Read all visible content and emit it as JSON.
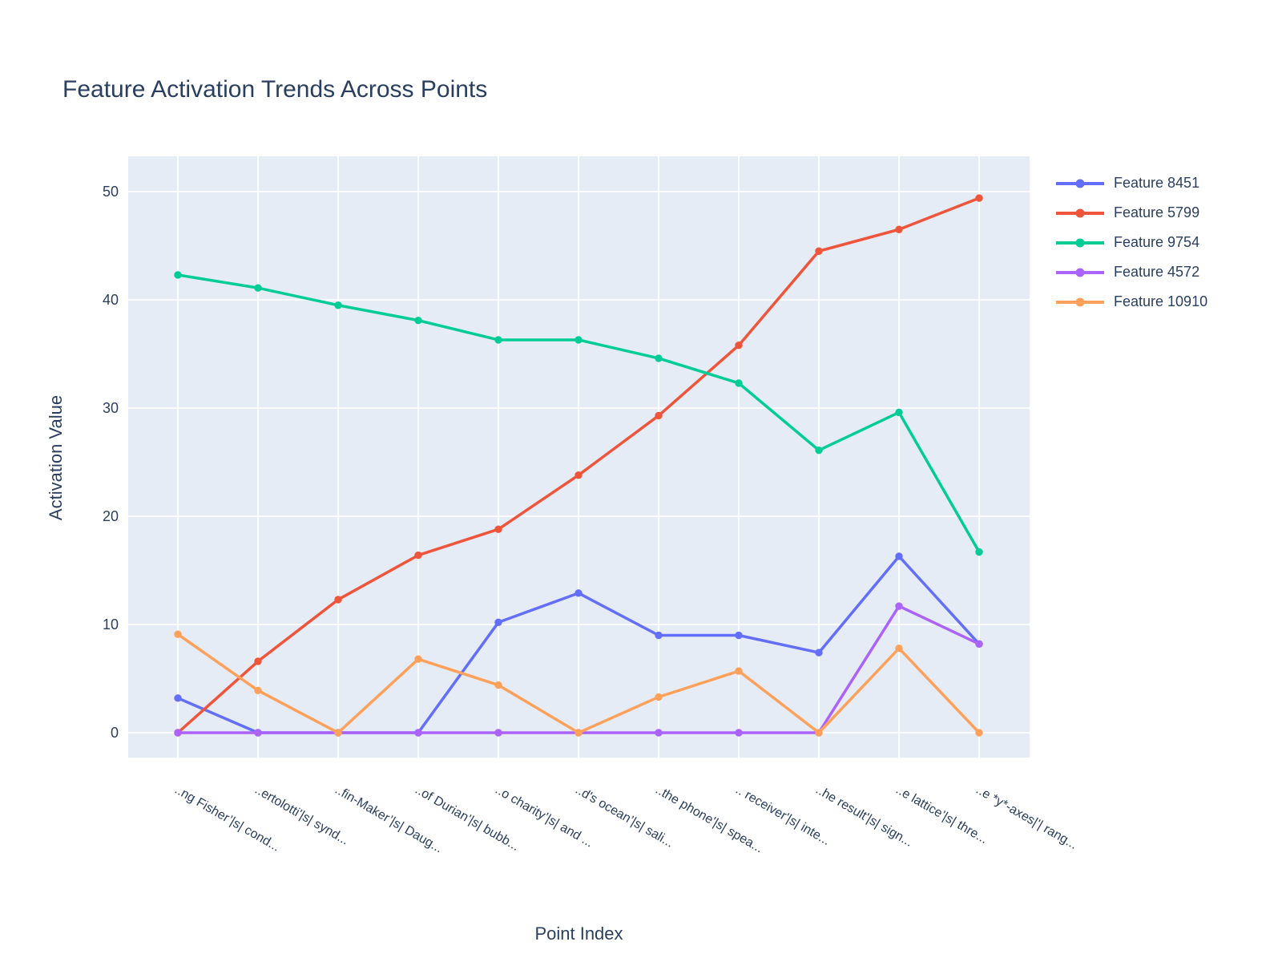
{
  "page": {
    "background": "#ffffff"
  },
  "chart_data": {
    "type": "line",
    "mode": "lines+markers",
    "title": "Feature Activation Trends Across Points",
    "xlabel": "Point Index",
    "ylabel": "Activation Value",
    "categories": [
      "..ng Fisher’|s| cond...",
      "..ertolotti'|s| synd...",
      "..fin-Maker’|s| Daug...",
      "..of Durian’|s| bubb...",
      "..o charity’|s| and ...",
      "..d's ocean’|s| sali...",
      "..the phone'|s| spea...",
      ".. receiver'|s| inte...",
      "..he result'|s| sign...",
      "..e lattice’|s| thre...",
      "..e *y*-axes|'| rang..."
    ],
    "series": [
      {
        "name": "Feature 8451",
        "color": "#636EFA",
        "values": [
          3.2,
          0,
          0,
          0,
          10.2,
          12.9,
          9.0,
          9.0,
          7.4,
          16.3,
          8.2
        ]
      },
      {
        "name": "Feature 5799",
        "color": "#EF553B",
        "values": [
          0,
          6.6,
          12.3,
          16.4,
          18.8,
          23.8,
          29.3,
          35.8,
          44.5,
          46.5,
          49.4
        ]
      },
      {
        "name": "Feature 9754",
        "color": "#00CC96",
        "values": [
          42.3,
          41.1,
          39.5,
          38.1,
          36.3,
          36.3,
          34.6,
          32.3,
          26.1,
          29.6,
          16.7
        ]
      },
      {
        "name": "Feature 4572",
        "color": "#AB63FA",
        "values": [
          0,
          0,
          0,
          0,
          0,
          0,
          0,
          0,
          0,
          11.7,
          8.2
        ]
      },
      {
        "name": "Feature 10910",
        "color": "#FFA15A",
        "values": [
          9.1,
          3.9,
          0,
          6.8,
          4.4,
          0,
          3.3,
          5.7,
          0,
          7.8,
          0
        ]
      }
    ],
    "yticks": [
      0,
      10,
      20,
      30,
      40,
      50
    ],
    "ylim": [
      -2.4,
      53.3
    ],
    "grid": true,
    "legend_position": "right",
    "plot_bg": "#E5ECF6",
    "grid_color": "#ffffff",
    "text_color": "#2a3f5f"
  }
}
